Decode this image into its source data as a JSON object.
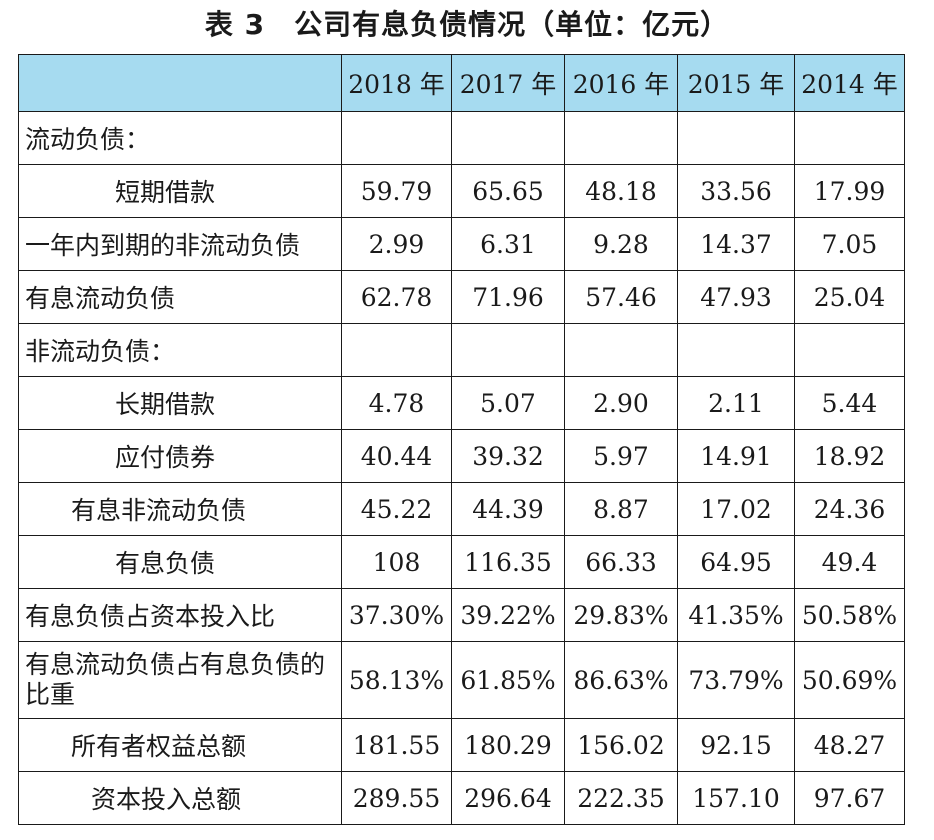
{
  "title": "表 3　公司有息负债情况（单位：亿元）",
  "table": {
    "header": [
      "",
      "2018 年",
      "2017 年",
      "2016 年",
      "2015 年",
      "2014 年"
    ],
    "rows": [
      {
        "label": "流动负债：",
        "values": [
          "",
          "",
          "",
          "",
          ""
        ]
      },
      {
        "label": "短期借款",
        "values": [
          "59.79",
          "65.65",
          "48.18",
          "33.56",
          "17.99"
        ]
      },
      {
        "label": "一年内到期的非流动负债",
        "values": [
          "2.99",
          "6.31",
          "9.28",
          "14.37",
          "7.05"
        ]
      },
      {
        "label": "有息流动负债",
        "values": [
          "62.78",
          "71.96",
          "57.46",
          "47.93",
          "25.04"
        ]
      },
      {
        "label": "非流动负债：",
        "values": [
          "",
          "",
          "",
          "",
          ""
        ]
      },
      {
        "label": "长期借款",
        "values": [
          "4.78",
          "5.07",
          "2.90",
          "2.11",
          "5.44"
        ]
      },
      {
        "label": "应付债券",
        "values": [
          "40.44",
          "39.32",
          "5.97",
          "14.91",
          "18.92"
        ]
      },
      {
        "label": "有息非流动负债",
        "values": [
          "45.22",
          "44.39",
          "8.87",
          "17.02",
          "24.36"
        ]
      },
      {
        "label": "有息负债",
        "values": [
          "108",
          "116.35",
          "66.33",
          "64.95",
          "49.4"
        ]
      },
      {
        "label": "有息负债占资本投入比",
        "values": [
          "37.30%",
          "39.22%",
          "29.83%",
          "41.35%",
          "50.58%"
        ]
      },
      {
        "label": "有息流动负债占有息负债的比重",
        "values": [
          "58.13%",
          "61.85%",
          "86.63%",
          "73.79%",
          "50.69%"
        ]
      },
      {
        "label": "所有者权益总额",
        "values": [
          "181.55",
          "180.29",
          "156.02",
          "92.15",
          "48.27"
        ]
      },
      {
        "label": "资本投入总额",
        "values": [
          "289.55",
          "296.64",
          "222.35",
          "157.10",
          "97.67"
        ]
      }
    ]
  }
}
